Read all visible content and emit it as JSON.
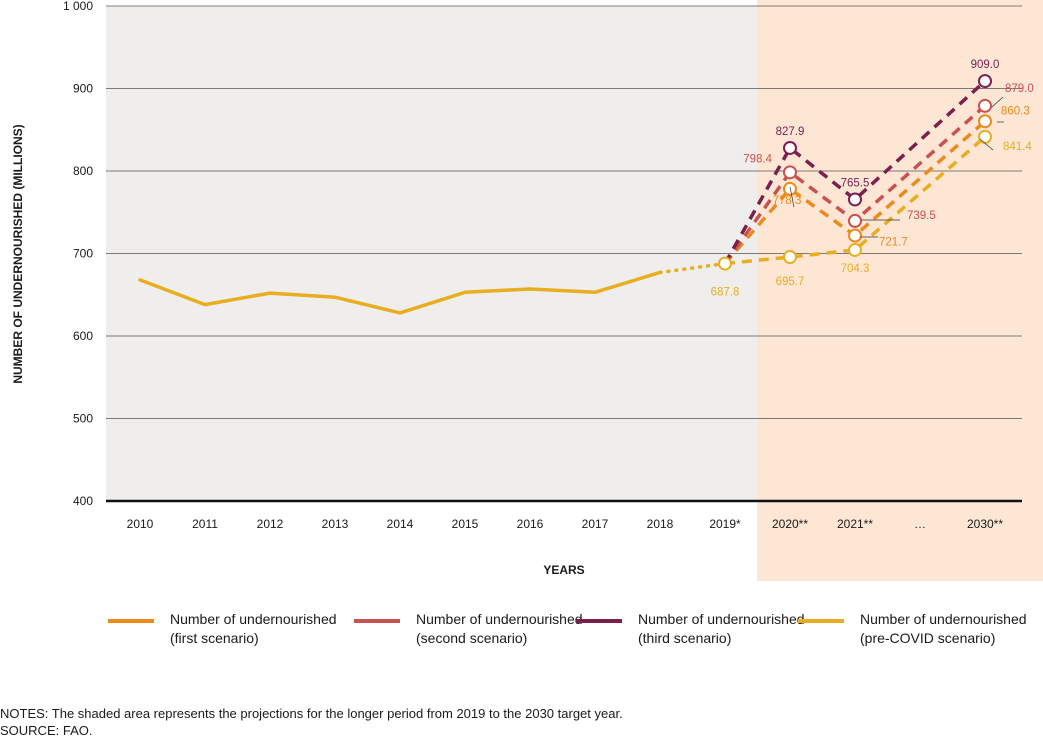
{
  "chart_data": {
    "type": "line",
    "ylabel": "NUMBER OF UNDERNOURISHED (MILLIONS)",
    "xlabel": "YEARS",
    "ylim": [
      400,
      1000
    ],
    "yticks": [
      400,
      500,
      600,
      700,
      800,
      900,
      1000
    ],
    "ytick_labels": [
      "400",
      "500",
      "600",
      "700",
      "800",
      "900",
      "1 000"
    ],
    "categories": [
      "2010",
      "2011",
      "2012",
      "2013",
      "2014",
      "2015",
      "2016",
      "2017",
      "2018",
      "2019*",
      "2020**",
      "2021**",
      "…",
      "2030**"
    ],
    "grid": "horizontal",
    "shaded_region": {
      "from": "2019*",
      "to": "2030**",
      "color": "#fde6d4"
    },
    "historical": {
      "color": "#e8ae1f",
      "values": [
        668,
        638,
        652,
        647,
        628,
        653,
        657,
        653,
        677
      ]
    },
    "series": [
      {
        "name": "Number of undernourished (first scenario)",
        "color": "#ec8a1c",
        "x": [
          "2019*",
          "2020**",
          "2021**",
          "2030**"
        ],
        "values": [
          687.8,
          778.3,
          721.7,
          860.3
        ],
        "labels": [
          "",
          "778.3",
          "721.7",
          "860.3"
        ]
      },
      {
        "name": "Number of undernourished (second scenario)",
        "color": "#c9514f",
        "x": [
          "2019*",
          "2020**",
          "2021**",
          "2030**"
        ],
        "values": [
          687.8,
          798.4,
          739.5,
          879.0
        ],
        "labels": [
          "",
          "798.4",
          "739.5",
          "879.0"
        ]
      },
      {
        "name": "Number of undernourished (third scenario)",
        "color": "#7b1f4f",
        "x": [
          "2019*",
          "2020**",
          "2021**",
          "2030**"
        ],
        "values": [
          687.8,
          827.9,
          765.5,
          909.0
        ],
        "labels": [
          "",
          "827.9",
          "765.5",
          "909.0"
        ]
      },
      {
        "name": "Number of undernourished (pre-COVID scenario)",
        "color": "#e8ae1f",
        "x": [
          "2019*",
          "2020**",
          "2021**",
          "2030**"
        ],
        "values": [
          687.8,
          695.7,
          704.3,
          841.4
        ],
        "labels": [
          "687.8",
          "695.7",
          "704.3",
          "841.4"
        ]
      }
    ]
  },
  "legend": [
    {
      "line1": "Number of undernourished",
      "line2": "(first scenario)",
      "color": "#ec8a1c"
    },
    {
      "line1": "Number of undernourished",
      "line2": "(second scenario)",
      "color": "#c9514f"
    },
    {
      "line1": "Number of undernourished",
      "line2": "(third scenario)",
      "color": "#7b1f4f"
    },
    {
      "line1": "Number of undernourished",
      "line2": "(pre-COVID scenario)",
      "color": "#e8ae1f"
    }
  ],
  "notes": "NOTES: The shaded area represents the projections for the longer period from 2019 to the 2030 target year.",
  "source": "SOURCE: FAO."
}
